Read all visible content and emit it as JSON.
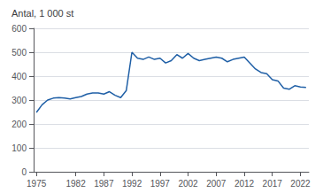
{
  "chart_data": {
    "type": "line",
    "ylabel": "Antal, 1 000 st",
    "x": [
      1975,
      1976,
      1977,
      1978,
      1979,
      1980,
      1981,
      1982,
      1983,
      1984,
      1985,
      1986,
      1987,
      1988,
      1989,
      1990,
      1991,
      1992,
      1993,
      1994,
      1995,
      1996,
      1997,
      1998,
      1999,
      2000,
      2001,
      2002,
      2003,
      2004,
      2005,
      2006,
      2007,
      2008,
      2009,
      2010,
      2011,
      2012,
      2013,
      2014,
      2015,
      2016,
      2017,
      2018,
      2019,
      2020,
      2021,
      2022,
      2023
    ],
    "values": [
      248,
      280,
      300,
      308,
      310,
      308,
      305,
      310,
      315,
      325,
      330,
      330,
      325,
      335,
      320,
      310,
      340,
      500,
      475,
      470,
      480,
      470,
      475,
      455,
      465,
      490,
      475,
      495,
      475,
      465,
      470,
      475,
      480,
      475,
      460,
      470,
      475,
      480,
      455,
      430,
      415,
      410,
      385,
      380,
      350,
      345,
      360,
      355,
      353
    ],
    "color": "#1f5fa6",
    "xlim": [
      1974.5,
      2023.5
    ],
    "xticks": [
      1975,
      1982,
      1987,
      1992,
      1997,
      2002,
      2007,
      2012,
      2017,
      2022
    ],
    "ylim": [
      0,
      600
    ],
    "yticks": [
      0,
      100,
      200,
      300,
      400,
      500,
      600
    ],
    "grid": true
  }
}
